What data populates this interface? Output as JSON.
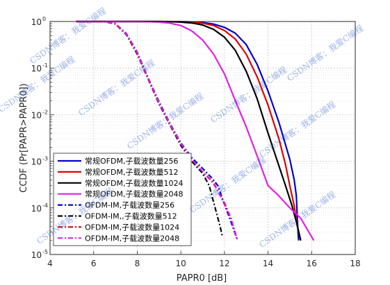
{
  "chart_data": {
    "type": "line",
    "title": "",
    "xlabel": "PAPR0 [dB]",
    "ylabel": "CCDF (Pr[PAPR>PAPR0])",
    "xlim": [
      4,
      18
    ],
    "ylim_log10": [
      -5,
      0
    ],
    "y_scale": "log",
    "x_ticks": [
      "4",
      "6",
      "8",
      "10",
      "12",
      "14",
      "16",
      "18"
    ],
    "y_ticks": [
      {
        "base": "10",
        "exp": "0"
      },
      {
        "base": "10",
        "exp": "-1"
      },
      {
        "base": "10",
        "exp": "-2"
      },
      {
        "base": "10",
        "exp": "-3"
      },
      {
        "base": "10",
        "exp": "-4"
      },
      {
        "base": "10",
        "exp": "-5"
      }
    ],
    "grid": true,
    "minor_grid": true,
    "legend_position": "bottom-left",
    "watermark": "CSDN博客：我爱C编程",
    "series": [
      {
        "name": "常规OFDM,子载波数量256",
        "color": "#0000cc",
        "style": "solid",
        "points": [
          [
            5.2,
            1.0
          ],
          [
            8,
            1.0
          ],
          [
            9,
            0.999
          ],
          [
            10,
            0.995
          ],
          [
            10.5,
            0.98
          ],
          [
            11,
            0.95
          ],
          [
            11.5,
            0.88
          ],
          [
            12,
            0.75
          ],
          [
            12.5,
            0.56
          ],
          [
            13,
            0.32
          ],
          [
            13.5,
            0.12
          ],
          [
            14,
            0.032
          ],
          [
            14.5,
            0.0068
          ],
          [
            15,
            0.0011
          ],
          [
            15.2,
            0.0004
          ],
          [
            15.3,
            0.00018
          ],
          [
            15.35,
            5e-05
          ],
          [
            15.4,
            2e-05
          ]
        ]
      },
      {
        "name": "常规OFDM,子载波数量512",
        "color": "#e00000",
        "style": "solid",
        "points": [
          [
            5.2,
            1.0
          ],
          [
            8,
            1.0
          ],
          [
            9,
            0.999
          ],
          [
            10,
            0.99
          ],
          [
            10.5,
            0.97
          ],
          [
            11,
            0.92
          ],
          [
            11.5,
            0.82
          ],
          [
            12,
            0.64
          ],
          [
            12.5,
            0.42
          ],
          [
            13,
            0.2
          ],
          [
            13.5,
            0.065
          ],
          [
            14,
            0.016
          ],
          [
            14.5,
            0.003
          ],
          [
            14.8,
            0.00085
          ],
          [
            15,
            0.0003
          ],
          [
            15.2,
            0.00011
          ],
          [
            15.35,
            4e-05
          ],
          [
            15.5,
            2e-05
          ]
        ]
      },
      {
        "name": "常规OFDM,子载波数量1024",
        "color": "#000000",
        "style": "solid",
        "points": [
          [
            5.2,
            1.0
          ],
          [
            8,
            1.0
          ],
          [
            9,
            0.997
          ],
          [
            9.5,
            0.99
          ],
          [
            10,
            0.97
          ],
          [
            10.5,
            0.93
          ],
          [
            11,
            0.84
          ],
          [
            11.5,
            0.68
          ],
          [
            12,
            0.46
          ],
          [
            12.5,
            0.24
          ],
          [
            13,
            0.085
          ],
          [
            13.5,
            0.022
          ],
          [
            14,
            0.004
          ],
          [
            14.4,
            0.0011
          ],
          [
            14.8,
            0.0003
          ],
          [
            15.1,
            0.00011
          ],
          [
            15.3,
            5e-05
          ],
          [
            15.5,
            2e-05
          ]
        ]
      },
      {
        "name": "常规OFDM,子载波数量2048",
        "color": "#e020e0",
        "style": "solid",
        "points": [
          [
            5.2,
            1.0
          ],
          [
            7.5,
            1.0
          ],
          [
            8.5,
            0.99
          ],
          [
            9,
            0.97
          ],
          [
            9.5,
            0.92
          ],
          [
            10,
            0.82
          ],
          [
            10.5,
            0.63
          ],
          [
            11,
            0.4
          ],
          [
            11.5,
            0.2
          ],
          [
            12,
            0.075
          ],
          [
            12.5,
            0.02
          ],
          [
            13,
            0.0055
          ],
          [
            13.5,
            0.0013
          ],
          [
            14,
            0.0003
          ],
          [
            14.5,
            0.00018
          ],
          [
            15,
            0.0001
          ],
          [
            15.5,
            6e-05
          ],
          [
            16.1,
            2e-05
          ]
        ]
      },
      {
        "name": "OFDM-IM,子载波数量256",
        "color": "#0000cc",
        "style": "dashdot",
        "points": [
          [
            5.2,
            1.0
          ],
          [
            6.5,
            0.99
          ],
          [
            7,
            0.9
          ],
          [
            7.5,
            0.55
          ],
          [
            8,
            0.22
          ],
          [
            8.5,
            0.062
          ],
          [
            9,
            0.019
          ],
          [
            9.5,
            0.0065
          ],
          [
            10,
            0.0025
          ],
          [
            10.5,
            0.0012
          ],
          [
            11,
            0.0007
          ],
          [
            11.4,
            0.00045
          ],
          [
            11.7,
            0.0003
          ],
          [
            12,
            0.00012
          ],
          [
            12.3,
            5e-05
          ],
          [
            12.6,
            2e-05
          ]
        ]
      },
      {
        "name": "OFDM-IM,,子载波数量512",
        "color": "#000000",
        "style": "dashdot",
        "points": [
          [
            5.2,
            1.0
          ],
          [
            6.5,
            0.99
          ],
          [
            7,
            0.88
          ],
          [
            7.5,
            0.52
          ],
          [
            8,
            0.2
          ],
          [
            8.5,
            0.058
          ],
          [
            9,
            0.017
          ],
          [
            9.5,
            0.006
          ],
          [
            10,
            0.0022
          ],
          [
            10.5,
            0.001
          ],
          [
            11,
            0.00055
          ],
          [
            11.3,
            0.0003
          ],
          [
            11.6,
            9e-05
          ],
          [
            11.8,
            4e-05
          ],
          [
            11.9,
            2.5e-05
          ]
        ]
      },
      {
        "name": "OFDM-IM,子载波数量1024",
        "color": "#cc1010",
        "style": "dashdot",
        "points": [
          [
            5.2,
            1.0
          ],
          [
            6.5,
            0.99
          ],
          [
            7,
            0.89
          ],
          [
            7.5,
            0.53
          ],
          [
            8,
            0.21
          ],
          [
            8.5,
            0.06
          ],
          [
            9,
            0.018
          ],
          [
            9.5,
            0.0062
          ],
          [
            10,
            0.0024
          ],
          [
            10.5,
            0.0011
          ],
          [
            11,
            0.0006
          ],
          [
            11.5,
            0.00035
          ],
          [
            12,
            0.00012
          ],
          [
            12.3,
            6e-05
          ],
          [
            12.6,
            2e-05
          ]
        ]
      },
      {
        "name": "OFDM-IM,子载波数量2048",
        "color": "#e020e0",
        "style": "dashdot",
        "points": [
          [
            5.2,
            1.0
          ],
          [
            6.5,
            0.99
          ],
          [
            7,
            0.9
          ],
          [
            7.5,
            0.54
          ],
          [
            8,
            0.215
          ],
          [
            8.5,
            0.061
          ],
          [
            9,
            0.018
          ],
          [
            9.5,
            0.0063
          ],
          [
            10,
            0.0024
          ],
          [
            10.5,
            0.0011
          ],
          [
            11,
            0.0006
          ],
          [
            11.5,
            0.00033
          ],
          [
            12,
            0.00013
          ],
          [
            12.3,
            6e-05
          ],
          [
            12.6,
            2e-05
          ]
        ]
      }
    ]
  }
}
